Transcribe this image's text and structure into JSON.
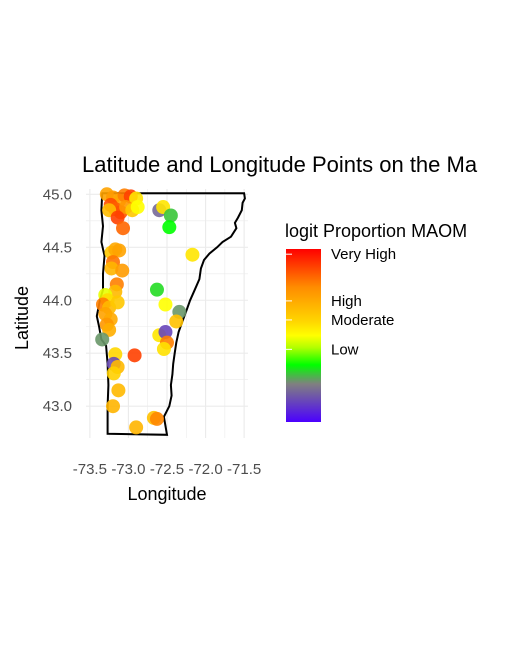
{
  "colors": {
    "grid": "#ebebeb",
    "outline": "#000000",
    "gradient_stops": [
      "#ff0000",
      "#ff8c00",
      "#ffd700",
      "#ffff00",
      "#b2ff00",
      "#00ff00",
      "#808080",
      "#4b00ff"
    ]
  },
  "chart_data": {
    "type": "scatter",
    "title": "Latitude and Longitude Points on the Ma",
    "xlabel": "Longitude",
    "ylabel": "Latitude",
    "xlim": [
      -73.55,
      -71.45
    ],
    "ylim": [
      42.7,
      45.05
    ],
    "xticks": [
      -73.5,
      -73.0,
      -72.5,
      -72.0,
      -71.5
    ],
    "xtick_labels": [
      "-73.5",
      "-73.0",
      "-72.5",
      "-72.0",
      "-71.5"
    ],
    "yticks": [
      43.0,
      43.5,
      44.0,
      44.5,
      45.0
    ],
    "ytick_labels": [
      "43.0",
      "43.5",
      "44.0",
      "44.5",
      "45.0"
    ],
    "grid": true,
    "legend": {
      "title": "logit Proportion MAOM",
      "placement": "right",
      "labels": [
        "Very High",
        "High",
        "Moderate",
        "Low"
      ],
      "label_levels": [
        0.97,
        0.7,
        0.59,
        0.42
      ]
    },
    "boundary": [
      [
        -73.35,
        45.01
      ],
      [
        -71.5,
        45.01
      ],
      [
        -71.49,
        44.96
      ],
      [
        -71.52,
        44.92
      ],
      [
        -71.53,
        44.85
      ],
      [
        -71.58,
        44.78
      ],
      [
        -71.62,
        44.73
      ],
      [
        -71.6,
        44.68
      ],
      [
        -71.67,
        44.6
      ],
      [
        -71.78,
        44.55
      ],
      [
        -71.85,
        44.5
      ],
      [
        -71.95,
        44.44
      ],
      [
        -72.02,
        44.38
      ],
      [
        -72.06,
        44.3
      ],
      [
        -72.08,
        44.2
      ],
      [
        -72.14,
        44.1
      ],
      [
        -72.2,
        44.0
      ],
      [
        -72.25,
        43.9
      ],
      [
        -72.3,
        43.8
      ],
      [
        -72.35,
        43.7
      ],
      [
        -72.38,
        43.6
      ],
      [
        -72.4,
        43.5
      ],
      [
        -72.42,
        43.4
      ],
      [
        -72.43,
        43.3
      ],
      [
        -72.45,
        43.2
      ],
      [
        -72.44,
        43.1
      ],
      [
        -72.47,
        43.0
      ],
      [
        -72.54,
        42.9
      ],
      [
        -72.5,
        42.73
      ],
      [
        -73.27,
        42.74
      ],
      [
        -73.27,
        43.0
      ],
      [
        -73.26,
        43.2
      ],
      [
        -73.27,
        43.4
      ],
      [
        -73.29,
        43.57
      ],
      [
        -73.35,
        43.63
      ],
      [
        -73.38,
        43.75
      ],
      [
        -73.41,
        43.85
      ],
      [
        -73.37,
        44.0
      ],
      [
        -73.33,
        44.1
      ],
      [
        -73.33,
        44.25
      ],
      [
        -73.31,
        44.42
      ],
      [
        -73.35,
        44.55
      ],
      [
        -73.33,
        44.7
      ],
      [
        -73.35,
        44.85
      ],
      [
        -73.34,
        45.01
      ]
    ],
    "points": [
      {
        "x": -73.28,
        "y": 45.0,
        "value": 0.72
      },
      {
        "x": -73.2,
        "y": 44.97,
        "value": 0.74
      },
      {
        "x": -73.12,
        "y": 44.94,
        "value": 0.71
      },
      {
        "x": -73.05,
        "y": 44.99,
        "value": 0.8
      },
      {
        "x": -72.97,
        "y": 44.98,
        "value": 0.9
      },
      {
        "x": -72.9,
        "y": 44.96,
        "value": 0.55
      },
      {
        "x": -73.23,
        "y": 44.9,
        "value": 0.88
      },
      {
        "x": -73.17,
        "y": 44.86,
        "value": 0.85
      },
      {
        "x": -73.1,
        "y": 44.83,
        "value": 0.87
      },
      {
        "x": -73.03,
        "y": 44.88,
        "value": 0.75
      },
      {
        "x": -72.95,
        "y": 44.85,
        "value": 0.62
      },
      {
        "x": -72.88,
        "y": 44.88,
        "value": 0.5
      },
      {
        "x": -73.25,
        "y": 44.85,
        "value": 0.65
      },
      {
        "x": -73.14,
        "y": 44.78,
        "value": 0.9
      },
      {
        "x": -73.07,
        "y": 44.68,
        "value": 0.84
      },
      {
        "x": -72.6,
        "y": 44.85,
        "value": 0.18
      },
      {
        "x": -72.55,
        "y": 44.88,
        "value": 0.55
      },
      {
        "x": -72.45,
        "y": 44.8,
        "value": 0.28
      },
      {
        "x": -72.47,
        "y": 44.69,
        "value": 0.33
      },
      {
        "x": -72.17,
        "y": 44.43,
        "value": 0.55
      },
      {
        "x": -73.22,
        "y": 44.45,
        "value": 0.62
      },
      {
        "x": -73.17,
        "y": 44.48,
        "value": 0.7
      },
      {
        "x": -73.12,
        "y": 44.47,
        "value": 0.72
      },
      {
        "x": -73.2,
        "y": 44.36,
        "value": 0.82
      },
      {
        "x": -73.22,
        "y": 44.3,
        "value": 0.67
      },
      {
        "x": -73.08,
        "y": 44.28,
        "value": 0.74
      },
      {
        "x": -73.15,
        "y": 44.15,
        "value": 0.8
      },
      {
        "x": -73.17,
        "y": 44.08,
        "value": 0.66
      },
      {
        "x": -72.63,
        "y": 44.1,
        "value": 0.3
      },
      {
        "x": -72.52,
        "y": 43.96,
        "value": 0.5
      },
      {
        "x": -73.3,
        "y": 44.05,
        "value": 0.48
      },
      {
        "x": -73.27,
        "y": 44.0,
        "value": 0.57
      },
      {
        "x": -73.33,
        "y": 43.96,
        "value": 0.8
      },
      {
        "x": -73.25,
        "y": 43.93,
        "value": 0.66
      },
      {
        "x": -73.3,
        "y": 43.87,
        "value": 0.72
      },
      {
        "x": -73.23,
        "y": 43.82,
        "value": 0.7
      },
      {
        "x": -73.28,
        "y": 43.77,
        "value": 0.75
      },
      {
        "x": -73.25,
        "y": 43.72,
        "value": 0.69
      },
      {
        "x": -73.14,
        "y": 43.98,
        "value": 0.62
      },
      {
        "x": -72.34,
        "y": 43.89,
        "value": 0.24
      },
      {
        "x": -72.38,
        "y": 43.8,
        "value": 0.64
      },
      {
        "x": -72.6,
        "y": 43.67,
        "value": 0.55
      },
      {
        "x": -72.52,
        "y": 43.7,
        "value": 0.12
      },
      {
        "x": -72.5,
        "y": 43.6,
        "value": 0.8
      },
      {
        "x": -72.54,
        "y": 43.54,
        "value": 0.56
      },
      {
        "x": -73.34,
        "y": 43.63,
        "value": 0.24
      },
      {
        "x": -73.17,
        "y": 43.49,
        "value": 0.58
      },
      {
        "x": -72.92,
        "y": 43.48,
        "value": 0.9
      },
      {
        "x": -73.19,
        "y": 43.4,
        "value": 0.13
      },
      {
        "x": -73.14,
        "y": 43.37,
        "value": 0.66
      },
      {
        "x": -73.19,
        "y": 43.31,
        "value": 0.6
      },
      {
        "x": -73.13,
        "y": 43.15,
        "value": 0.66
      },
      {
        "x": -73.2,
        "y": 43.0,
        "value": 0.67
      },
      {
        "x": -72.67,
        "y": 42.89,
        "value": 0.64
      },
      {
        "x": -72.63,
        "y": 42.88,
        "value": 0.79
      },
      {
        "x": -72.9,
        "y": 42.8,
        "value": 0.67
      }
    ]
  }
}
